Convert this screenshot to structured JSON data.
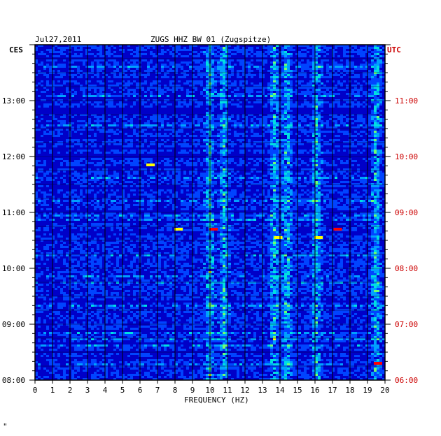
{
  "header": {
    "date": "Jul27,2011",
    "station": "ZUGS HHZ BW 01 (Zugspitze)",
    "left_zone": "CES",
    "right_zone": "UTC"
  },
  "footer_mark": "\"",
  "colors": {
    "background": "#0000c8",
    "grid": "#000000",
    "utc_labels": "#cc0000",
    "text": "#000000"
  },
  "chart_data": {
    "type": "heatmap",
    "title": "ZUGS HHZ BW 01 (Zugspitze)",
    "xlabel": "FREQUENCY (HZ)",
    "x_ticks": [
      "0",
      "1",
      "2",
      "3",
      "4",
      "5",
      "6",
      "7",
      "8",
      "9",
      "10",
      "11",
      "12",
      "13",
      "14",
      "15",
      "16",
      "17",
      "18",
      "19",
      "20"
    ],
    "xlim": [
      0,
      20
    ],
    "y_left_ticks": [
      "13:00",
      "12:00",
      "11:00",
      "10:00",
      "09:00",
      "08:00"
    ],
    "y_left_values": [
      13,
      12,
      11,
      10,
      9,
      8
    ],
    "y_right_ticks": [
      "11:00",
      "10:00",
      "09:00",
      "08:00",
      "07:00",
      "06:00"
    ],
    "y_right_values": [
      11,
      10,
      9,
      8,
      7,
      6
    ],
    "ylim_cest": [
      8,
      14
    ],
    "colorscale": [
      "#0000c8",
      "#0044ff",
      "#00a0ff",
      "#00e0e0",
      "#70ff70",
      "#ffff00",
      "#ff8000",
      "#ff0000"
    ],
    "grid": true,
    "vertical_bands_hz": [
      10.0,
      10.8,
      13.7,
      14.4,
      16.1,
      19.5
    ],
    "hot_spots": [
      {
        "hz": 10.2,
        "time": 10.7,
        "level": "red"
      },
      {
        "hz": 17.3,
        "time": 10.7,
        "level": "red"
      },
      {
        "hz": 8.2,
        "time": 10.7,
        "level": "yellow"
      },
      {
        "hz": 13.9,
        "time": 10.55,
        "level": "yellow"
      },
      {
        "hz": 16.2,
        "time": 10.55,
        "level": "yellow"
      },
      {
        "hz": 19.6,
        "time": 8.3,
        "level": "red"
      },
      {
        "hz": 6.6,
        "time": 11.85,
        "level": "yellow"
      }
    ]
  }
}
